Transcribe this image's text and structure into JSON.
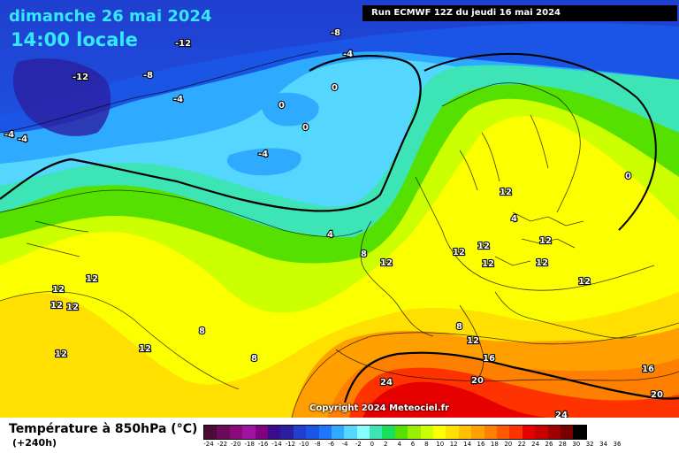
{
  "header": {
    "date": "dimanche 26 mai 2024",
    "time": "14:00 locale",
    "run": "Run ECMWF 12Z du jeudi 16 mai 2024",
    "copyright": "Copyright 2024 Meteociel.fr"
  },
  "legend": {
    "title": "Température à 850hPa (°C)",
    "lead": "(+240h)",
    "scale_labels": [
      "-24",
      "-22",
      "-20",
      "-18",
      "-16",
      "-14",
      "-12",
      "-10",
      "-8",
      "-6",
      "-4",
      "-2",
      "0",
      "2",
      "4",
      "6",
      "8",
      "10",
      "12",
      "14",
      "16",
      "18",
      "20",
      "22",
      "24",
      "26",
      "28",
      "30",
      "32",
      "34",
      "36"
    ],
    "scale_colors": [
      "#4a0b36",
      "#6c0a5a",
      "#8a0a7c",
      "#a012a0",
      "#800080",
      "#3a0b8a",
      "#2a1fa0",
      "#1f3fd0",
      "#1a55e6",
      "#1f77ff",
      "#2eaaff",
      "#55d6ff",
      "#86ffff",
      "#3ce4b6",
      "#18e05c",
      "#55e000",
      "#9aee00",
      "#ccff00",
      "#fbff00",
      "#ffe000",
      "#ffc000",
      "#ffa000",
      "#ff7f00",
      "#ff5a00",
      "#ff3300",
      "#e60000",
      "#c80000",
      "#a00000",
      "#780000",
      "#000000"
    ]
  },
  "map": {
    "isotherm_labels": [
      "-12",
      "-8",
      "-12",
      "-8",
      "-4",
      "-4",
      "-4",
      "-4",
      "-4",
      "0",
      "0",
      "0",
      "0",
      "4",
      "4",
      "8",
      "8",
      "8",
      "8",
      "12",
      "12",
      "12",
      "12",
      "12",
      "12",
      "12",
      "12",
      "12",
      "12",
      "12",
      "12",
      "12",
      "12",
      "12",
      "16",
      "16",
      "20",
      "20",
      "24",
      "24"
    ]
  }
}
